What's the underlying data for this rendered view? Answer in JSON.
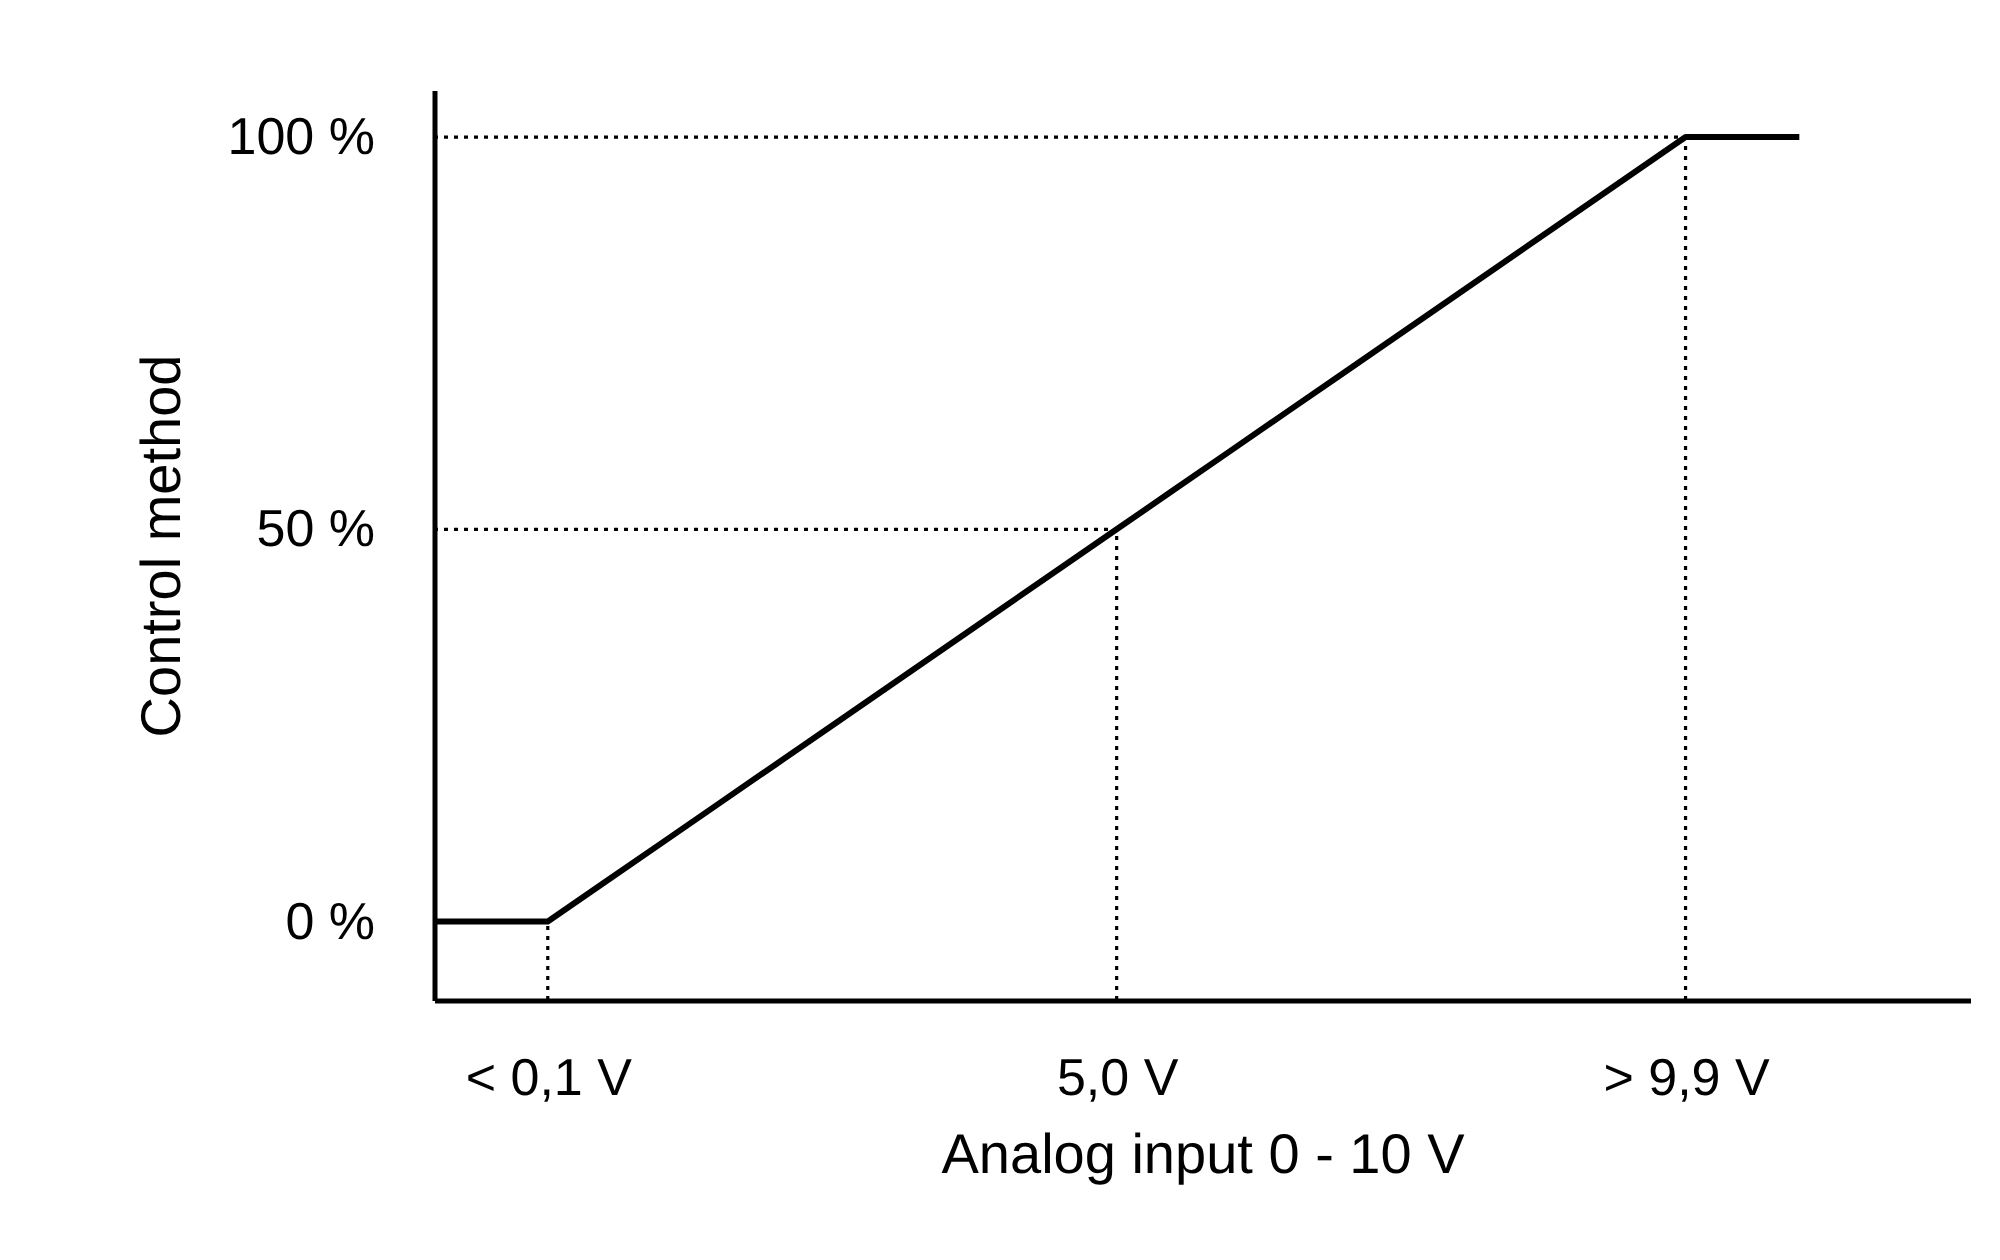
{
  "chart_data": {
    "type": "line",
    "xlabel": "Analog input 0 - 10 V",
    "ylabel": "Control method",
    "categories": [
      null,
      null,
      "< 0,1 V",
      null,
      null,
      null,
      null,
      null,
      null,
      null,
      null,
      null,
      "5,0 V",
      null,
      null,
      null,
      null,
      null,
      null,
      null,
      null,
      null,
      "> 9,9 V",
      null,
      null,
      null,
      null,
      null
    ],
    "ylim": [
      -10,
      106
    ],
    "yticks": [
      {
        "value": 0,
        "label": "0 %"
      },
      {
        "value": 50,
        "label": "50 %"
      },
      {
        "value": 100,
        "label": "100 %"
      }
    ],
    "grid": false,
    "marker": "none",
    "series": [
      {
        "color": "#000000",
        "line_style": "solid",
        "values": [
          0,
          0,
          0,
          5,
          10,
          15,
          20,
          25,
          30,
          35,
          40,
          45,
          50,
          55,
          60,
          65,
          70,
          75,
          80,
          85,
          90,
          95,
          100,
          100,
          100,
          null,
          null,
          null
        ]
      },
      {
        "type": "line",
        "color": "#000000",
        "line_style": "dotted",
        "values": [
          50,
          50,
          50,
          50,
          50,
          50,
          50,
          50,
          50,
          50,
          50,
          50,
          50,
          null,
          null,
          null,
          null,
          null,
          null,
          null,
          null,
          null,
          null,
          null,
          null,
          null,
          null,
          null
        ]
      },
      {
        "type": "line",
        "color": "#000000",
        "line_style": "dotted",
        "values": [
          100,
          100,
          100,
          100,
          100,
          100,
          100,
          100,
          100,
          100,
          100,
          100,
          100,
          100,
          100,
          100,
          100,
          100,
          100,
          100,
          100,
          100,
          100,
          null,
          null,
          null,
          null,
          null
        ]
      },
      {
        "type": "line",
        "color": "#000000",
        "line_style": "dotted",
        "x": [
          "< 0,1 V",
          "< 0,1 V"
        ],
        "values": [
          -10,
          0
        ]
      },
      {
        "type": "line",
        "color": "#000000",
        "line_style": "dotted",
        "x": [
          "5,0 V",
          "5,0 V"
        ],
        "values": [
          -10,
          50
        ]
      },
      {
        "type": "line",
        "color": "#000000",
        "line_style": "dotted",
        "x": [
          "> 9,9 V",
          "> 9,9 V"
        ],
        "values": [
          -10,
          100
        ]
      }
    ]
  }
}
